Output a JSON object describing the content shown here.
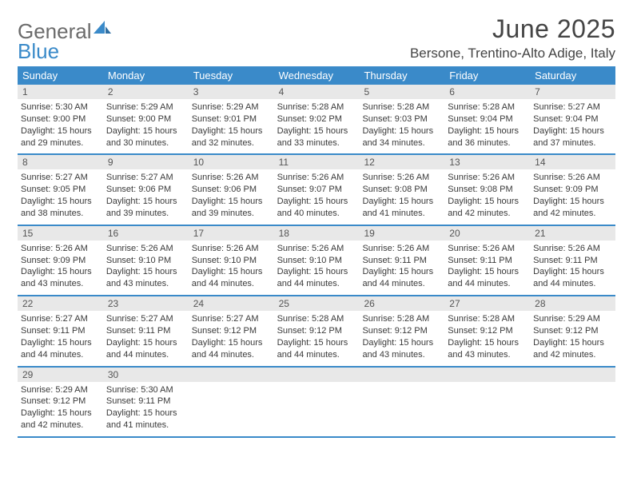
{
  "brand": {
    "part1": "General",
    "part2": "Blue"
  },
  "title": "June 2025",
  "location": "Bersone, Trentino-Alto Adige, Italy",
  "colors": {
    "accent": "#3a8ac9",
    "daynum_bg": "#e8e8e8",
    "text": "#3a3a3a"
  },
  "weekdays": [
    "Sunday",
    "Monday",
    "Tuesday",
    "Wednesday",
    "Thursday",
    "Friday",
    "Saturday"
  ],
  "weeks": [
    [
      {
        "n": "1",
        "sr": "Sunrise: 5:30 AM",
        "ss": "Sunset: 9:00 PM",
        "d1": "Daylight: 15 hours",
        "d2": "and 29 minutes."
      },
      {
        "n": "2",
        "sr": "Sunrise: 5:29 AM",
        "ss": "Sunset: 9:00 PM",
        "d1": "Daylight: 15 hours",
        "d2": "and 30 minutes."
      },
      {
        "n": "3",
        "sr": "Sunrise: 5:29 AM",
        "ss": "Sunset: 9:01 PM",
        "d1": "Daylight: 15 hours",
        "d2": "and 32 minutes."
      },
      {
        "n": "4",
        "sr": "Sunrise: 5:28 AM",
        "ss": "Sunset: 9:02 PM",
        "d1": "Daylight: 15 hours",
        "d2": "and 33 minutes."
      },
      {
        "n": "5",
        "sr": "Sunrise: 5:28 AM",
        "ss": "Sunset: 9:03 PM",
        "d1": "Daylight: 15 hours",
        "d2": "and 34 minutes."
      },
      {
        "n": "6",
        "sr": "Sunrise: 5:28 AM",
        "ss": "Sunset: 9:04 PM",
        "d1": "Daylight: 15 hours",
        "d2": "and 36 minutes."
      },
      {
        "n": "7",
        "sr": "Sunrise: 5:27 AM",
        "ss": "Sunset: 9:04 PM",
        "d1": "Daylight: 15 hours",
        "d2": "and 37 minutes."
      }
    ],
    [
      {
        "n": "8",
        "sr": "Sunrise: 5:27 AM",
        "ss": "Sunset: 9:05 PM",
        "d1": "Daylight: 15 hours",
        "d2": "and 38 minutes."
      },
      {
        "n": "9",
        "sr": "Sunrise: 5:27 AM",
        "ss": "Sunset: 9:06 PM",
        "d1": "Daylight: 15 hours",
        "d2": "and 39 minutes."
      },
      {
        "n": "10",
        "sr": "Sunrise: 5:26 AM",
        "ss": "Sunset: 9:06 PM",
        "d1": "Daylight: 15 hours",
        "d2": "and 39 minutes."
      },
      {
        "n": "11",
        "sr": "Sunrise: 5:26 AM",
        "ss": "Sunset: 9:07 PM",
        "d1": "Daylight: 15 hours",
        "d2": "and 40 minutes."
      },
      {
        "n": "12",
        "sr": "Sunrise: 5:26 AM",
        "ss": "Sunset: 9:08 PM",
        "d1": "Daylight: 15 hours",
        "d2": "and 41 minutes."
      },
      {
        "n": "13",
        "sr": "Sunrise: 5:26 AM",
        "ss": "Sunset: 9:08 PM",
        "d1": "Daylight: 15 hours",
        "d2": "and 42 minutes."
      },
      {
        "n": "14",
        "sr": "Sunrise: 5:26 AM",
        "ss": "Sunset: 9:09 PM",
        "d1": "Daylight: 15 hours",
        "d2": "and 42 minutes."
      }
    ],
    [
      {
        "n": "15",
        "sr": "Sunrise: 5:26 AM",
        "ss": "Sunset: 9:09 PM",
        "d1": "Daylight: 15 hours",
        "d2": "and 43 minutes."
      },
      {
        "n": "16",
        "sr": "Sunrise: 5:26 AM",
        "ss": "Sunset: 9:10 PM",
        "d1": "Daylight: 15 hours",
        "d2": "and 43 minutes."
      },
      {
        "n": "17",
        "sr": "Sunrise: 5:26 AM",
        "ss": "Sunset: 9:10 PM",
        "d1": "Daylight: 15 hours",
        "d2": "and 44 minutes."
      },
      {
        "n": "18",
        "sr": "Sunrise: 5:26 AM",
        "ss": "Sunset: 9:10 PM",
        "d1": "Daylight: 15 hours",
        "d2": "and 44 minutes."
      },
      {
        "n": "19",
        "sr": "Sunrise: 5:26 AM",
        "ss": "Sunset: 9:11 PM",
        "d1": "Daylight: 15 hours",
        "d2": "and 44 minutes."
      },
      {
        "n": "20",
        "sr": "Sunrise: 5:26 AM",
        "ss": "Sunset: 9:11 PM",
        "d1": "Daylight: 15 hours",
        "d2": "and 44 minutes."
      },
      {
        "n": "21",
        "sr": "Sunrise: 5:26 AM",
        "ss": "Sunset: 9:11 PM",
        "d1": "Daylight: 15 hours",
        "d2": "and 44 minutes."
      }
    ],
    [
      {
        "n": "22",
        "sr": "Sunrise: 5:27 AM",
        "ss": "Sunset: 9:11 PM",
        "d1": "Daylight: 15 hours",
        "d2": "and 44 minutes."
      },
      {
        "n": "23",
        "sr": "Sunrise: 5:27 AM",
        "ss": "Sunset: 9:11 PM",
        "d1": "Daylight: 15 hours",
        "d2": "and 44 minutes."
      },
      {
        "n": "24",
        "sr": "Sunrise: 5:27 AM",
        "ss": "Sunset: 9:12 PM",
        "d1": "Daylight: 15 hours",
        "d2": "and 44 minutes."
      },
      {
        "n": "25",
        "sr": "Sunrise: 5:28 AM",
        "ss": "Sunset: 9:12 PM",
        "d1": "Daylight: 15 hours",
        "d2": "and 44 minutes."
      },
      {
        "n": "26",
        "sr": "Sunrise: 5:28 AM",
        "ss": "Sunset: 9:12 PM",
        "d1": "Daylight: 15 hours",
        "d2": "and 43 minutes."
      },
      {
        "n": "27",
        "sr": "Sunrise: 5:28 AM",
        "ss": "Sunset: 9:12 PM",
        "d1": "Daylight: 15 hours",
        "d2": "and 43 minutes."
      },
      {
        "n": "28",
        "sr": "Sunrise: 5:29 AM",
        "ss": "Sunset: 9:12 PM",
        "d1": "Daylight: 15 hours",
        "d2": "and 42 minutes."
      }
    ],
    [
      {
        "n": "29",
        "sr": "Sunrise: 5:29 AM",
        "ss": "Sunset: 9:12 PM",
        "d1": "Daylight: 15 hours",
        "d2": "and 42 minutes."
      },
      {
        "n": "30",
        "sr": "Sunrise: 5:30 AM",
        "ss": "Sunset: 9:11 PM",
        "d1": "Daylight: 15 hours",
        "d2": "and 41 minutes."
      },
      {
        "empty": true
      },
      {
        "empty": true
      },
      {
        "empty": true
      },
      {
        "empty": true
      },
      {
        "empty": true
      }
    ]
  ]
}
